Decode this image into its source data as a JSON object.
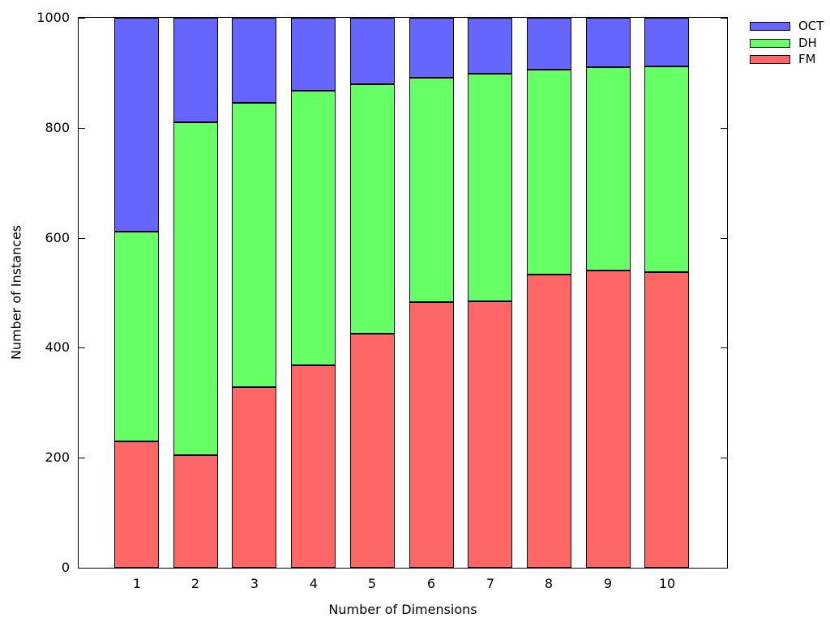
{
  "chart_data": {
    "type": "bar",
    "stacked": true,
    "title": "",
    "xlabel": "Number of Dimensions",
    "ylabel": "Number of Instances",
    "categories": [
      "1",
      "2",
      "3",
      "4",
      "5",
      "6",
      "7",
      "8",
      "9",
      "10"
    ],
    "series": [
      {
        "name": "OCT",
        "color": "#6666ff",
        "values": [
          389,
          190,
          154,
          133,
          121,
          109,
          101,
          94,
          90,
          89
        ]
      },
      {
        "name": "DH",
        "color": "#66ff66",
        "values": [
          381,
          605,
          518,
          499,
          454,
          408,
          414,
          373,
          369,
          373
        ]
      },
      {
        "name": "FM",
        "color": "#ff6666",
        "values": [
          230,
          205,
          328,
          368,
          425,
          483,
          485,
          533,
          541,
          538
        ]
      }
    ],
    "ylim": [
      0,
      1000
    ],
    "yticks": [
      0,
      200,
      400,
      600,
      800,
      1000
    ],
    "legend_position": "top-right-outside",
    "grid": false,
    "bar_border_color": "#000000",
    "frame_color": "#000000"
  }
}
